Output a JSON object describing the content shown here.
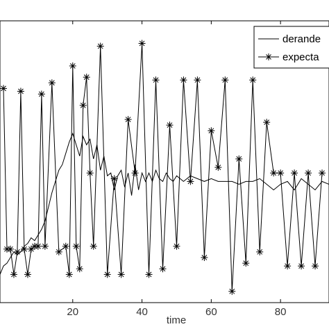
{
  "chart_data": {
    "type": "line",
    "title": "",
    "xlabel": "time",
    "ylabel": "",
    "xlim": [
      -1,
      94
    ],
    "ylim": [
      0,
      10
    ],
    "x_ticks": [
      20,
      40,
      60,
      80
    ],
    "grid": false,
    "legend_position": "top-right",
    "line_color": "#000000",
    "series": [
      {
        "name": "derande",
        "marker": "none",
        "x": [
          -1,
          0,
          1,
          2,
          3,
          4,
          5,
          6,
          7,
          8,
          9,
          10,
          11,
          12,
          13,
          14,
          15,
          16,
          17,
          18,
          19,
          20,
          21,
          22,
          23,
          24,
          25,
          26,
          27,
          28,
          29,
          30,
          31,
          32,
          33,
          34,
          35,
          36,
          37,
          38,
          39,
          40,
          41,
          42,
          43,
          44,
          45,
          46,
          47,
          48,
          49,
          50,
          52,
          54,
          56,
          58,
          60,
          62,
          64,
          66,
          68,
          70,
          72,
          74,
          76,
          78,
          80,
          82,
          84,
          86,
          88,
          90,
          92,
          94
        ],
        "y": [
          1.0,
          1.3,
          1.4,
          1.6,
          1.8,
          1.7,
          1.8,
          2.0,
          2.1,
          2.3,
          2.2,
          2.4,
          2.6,
          2.9,
          3.4,
          3.9,
          4.3,
          4.7,
          4.9,
          5.3,
          5.7,
          6.0,
          5.6,
          5.2,
          5.9,
          5.6,
          5.8,
          5.1,
          5.6,
          4.7,
          5.2,
          4.5,
          4.6,
          4.0,
          4.5,
          4.7,
          4.1,
          4.6,
          3.8,
          4.9,
          4.0,
          4.6,
          4.3,
          4.6,
          4.3,
          4.7,
          4.4,
          4.3,
          4.6,
          4.4,
          4.3,
          4.5,
          4.3,
          4.5,
          4.4,
          4.3,
          4.4,
          4.3,
          4.3,
          4.3,
          4.2,
          4.3,
          4.3,
          4.4,
          4.2,
          4.0,
          4.2,
          4.3,
          4.0,
          4.4,
          4.2,
          4.0,
          4.3,
          4.2
        ]
      },
      {
        "name": "expecta",
        "marker": "asterisk",
        "x": [
          0,
          1,
          2,
          3,
          4,
          5,
          6,
          7,
          8,
          9,
          10,
          11,
          12,
          14,
          16,
          18,
          19,
          20,
          21,
          22,
          23,
          24,
          25,
          26,
          28,
          30,
          32,
          34,
          36,
          38,
          40,
          42,
          44,
          46,
          48,
          50,
          52,
          54,
          56,
          58,
          60,
          62,
          64,
          66,
          68,
          70,
          72,
          74,
          76,
          78,
          80,
          82,
          84,
          86,
          88,
          90,
          92
        ],
        "y": [
          7.6,
          1.9,
          1.9,
          1.0,
          1.8,
          7.5,
          1.9,
          1.0,
          1.9,
          2.0,
          2.0,
          7.4,
          2.0,
          7.8,
          1.8,
          2.0,
          1.0,
          8.4,
          2.0,
          1.2,
          7.0,
          8.0,
          4.6,
          2.0,
          9.1,
          1.0,
          4.4,
          1.0,
          6.5,
          4.6,
          9.2,
          1.0,
          7.9,
          1.2,
          6.3,
          2.0,
          7.9,
          4.3,
          7.9,
          1.6,
          6.1,
          4.8,
          7.9,
          0.4,
          5.1,
          1.4,
          7.9,
          1.8,
          6.4,
          4.6,
          4.6,
          1.3,
          4.6,
          1.3,
          4.6,
          1.3,
          4.6
        ]
      }
    ]
  }
}
